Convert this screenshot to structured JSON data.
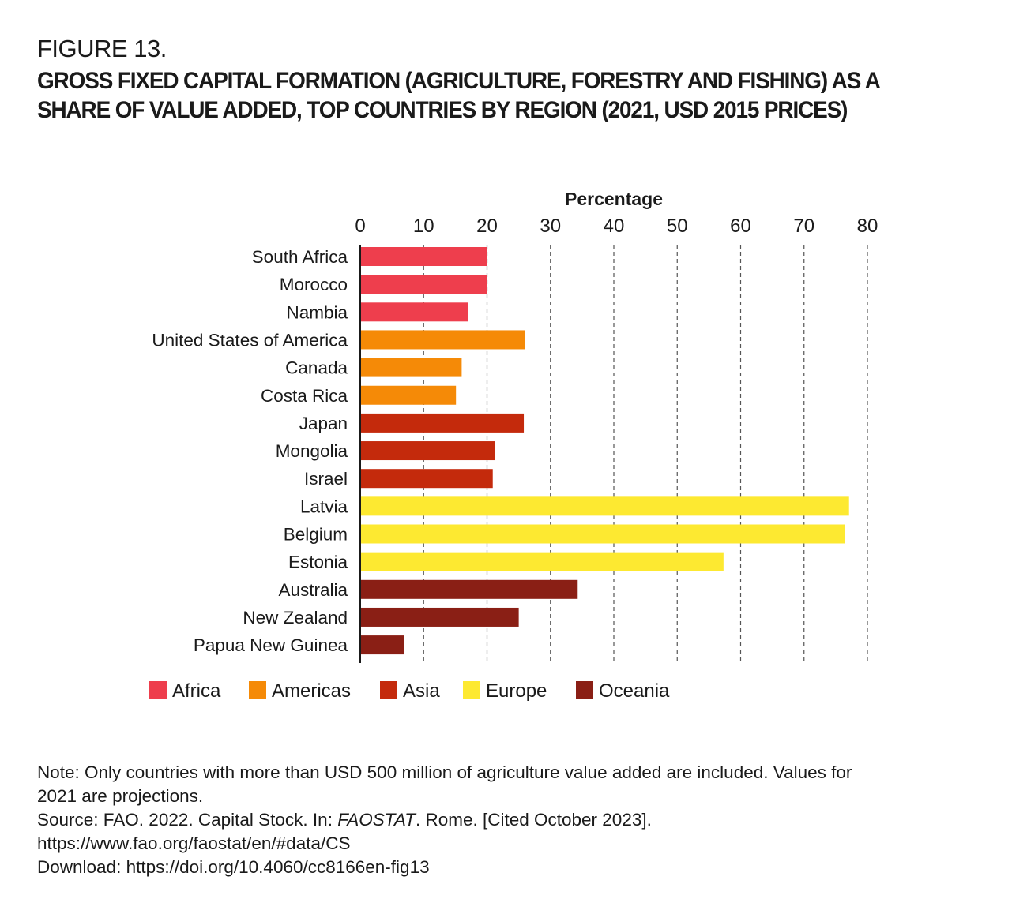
{
  "figure": {
    "label": "FIGURE 13.",
    "title": "GROSS FIXED CAPITAL FORMATION (AGRICULTURE, FORESTRY AND FISHING) AS A SHARE OF VALUE ADDED, TOP COUNTRIES BY REGION (2021, USD 2015 PRICES)"
  },
  "chart_data": {
    "type": "bar",
    "orientation": "horizontal",
    "xlabel": "Percentage",
    "ylabel": "",
    "xlim": [
      0,
      80
    ],
    "xticks": [
      0,
      10,
      20,
      30,
      40,
      50,
      60,
      70,
      80
    ],
    "grid": true,
    "legend_position": "bottom-left",
    "regions": [
      {
        "name": "Africa",
        "color": "#ee3e4d"
      },
      {
        "name": "Americas",
        "color": "#f58a07"
      },
      {
        "name": "Asia",
        "color": "#c42a0c"
      },
      {
        "name": "Europe",
        "color": "#fde931"
      },
      {
        "name": "Oceania",
        "color": "#8a1f15"
      }
    ],
    "categories": [
      "South Africa",
      "Morocco",
      "Nambia",
      "United States of America",
      "Canada",
      "Costa Rica",
      "Japan",
      "Mongolia",
      "Israel",
      "Latvia",
      "Belgium",
      "Estonia",
      "Australia",
      "New Zealand",
      "Papua New Guinea"
    ],
    "category_region": [
      "Africa",
      "Africa",
      "Africa",
      "Americas",
      "Americas",
      "Americas",
      "Asia",
      "Asia",
      "Asia",
      "Europe",
      "Europe",
      "Europe",
      "Oceania",
      "Oceania",
      "Oceania"
    ],
    "values": [
      20.0,
      20.0,
      17.0,
      26.0,
      16.0,
      15.1,
      25.8,
      21.3,
      20.9,
      77.1,
      76.4,
      57.3,
      34.3,
      25.0,
      6.9
    ]
  },
  "notes": {
    "note": "Note: Only countries with more than USD 500 million of agriculture value added are included. Values for",
    "note_cont": "2021 are projections.",
    "source_prefix": "Source: FAO. 2022. Capital Stock. In: ",
    "source_italic": "FAOSTAT",
    "source_suffix": ". Rome. [Cited October 2023].",
    "source_url": "https://www.fao.org/faostat/en/#data/CS",
    "download": "Download: https://doi.org/10.4060/cc8166en-fig13"
  }
}
